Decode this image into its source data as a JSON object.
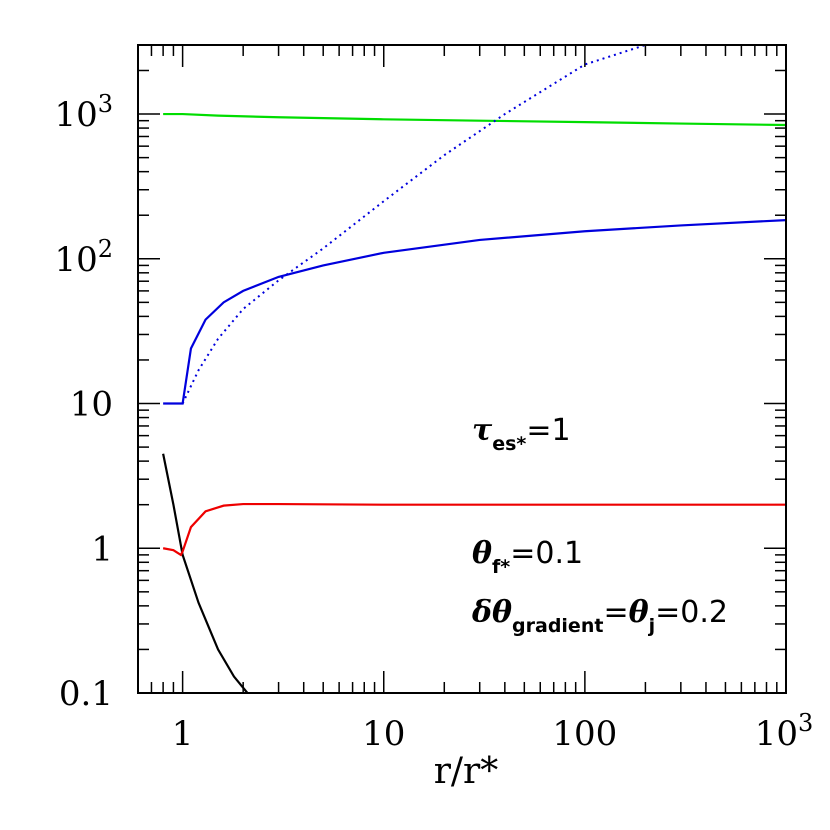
{
  "chart_data": {
    "type": "line",
    "xscale": "log",
    "yscale": "log",
    "xlim": [
      0.6,
      1000
    ],
    "ylim": [
      0.1,
      3000
    ],
    "xlabel": "r/r*",
    "ylabel": "",
    "xticks": [
      {
        "value": 1,
        "label": "1"
      },
      {
        "value": 10,
        "label": "10"
      },
      {
        "value": 100,
        "label": "100"
      },
      {
        "value": 1000,
        "label": "10",
        "sup": "3"
      }
    ],
    "yticks": [
      {
        "value": 0.1,
        "label": "0.1"
      },
      {
        "value": 1,
        "label": "1"
      },
      {
        "value": 10,
        "label": "10"
      },
      {
        "value": 100,
        "label": "10",
        "sup": "2"
      },
      {
        "value": 1000,
        "label": "10",
        "sup": "3"
      }
    ],
    "series": [
      {
        "color": "#00dd00",
        "style": "solid",
        "x": [
          0.8,
          1.0,
          1.5,
          3,
          10,
          30,
          100,
          300,
          1000
        ],
        "y": [
          1000,
          1000,
          975,
          950,
          920,
          900,
          880,
          860,
          840
        ]
      },
      {
        "color": "#0000dd",
        "style": "solid",
        "x": [
          0.8,
          0.9,
          0.99,
          1.0,
          1.1,
          1.3,
          1.6,
          2,
          3,
          5,
          10,
          30,
          100,
          300,
          1000
        ],
        "y": [
          10,
          10,
          10,
          10,
          24,
          38,
          50,
          60,
          75,
          90,
          110,
          135,
          155,
          170,
          185
        ]
      },
      {
        "color": "#0000dd",
        "style": "dotted",
        "x": [
          1.0,
          1.2,
          1.5,
          2,
          3,
          5,
          10,
          20,
          40,
          100,
          200
        ],
        "y": [
          10,
          17,
          28,
          45,
          71,
          118,
          250,
          520,
          1000,
          2200,
          3000
        ]
      },
      {
        "color": "#000000",
        "style": "solid",
        "x": [
          0.8,
          0.9,
          1.0,
          1.2,
          1.5,
          1.8,
          2.1
        ],
        "y": [
          4.5,
          2.0,
          0.9,
          0.42,
          0.2,
          0.13,
          0.1
        ]
      },
      {
        "color": "#ee0000",
        "style": "solid",
        "x": [
          0.8,
          0.9,
          0.98,
          1.0,
          1.1,
          1.3,
          1.6,
          2.0,
          3,
          10,
          100,
          1000
        ],
        "y": [
          1.0,
          0.97,
          0.9,
          0.95,
          1.4,
          1.8,
          1.97,
          2.02,
          2.02,
          2.0,
          2.0,
          2.0
        ]
      }
    ],
    "annotations": {
      "tau": {
        "symbol": "τ",
        "sub": "es*",
        "rest": "=1"
      },
      "theta_f": {
        "symbol": "θ",
        "sub": "f*",
        "rest": "=0.1"
      },
      "gradient": {
        "symbol": "δθ",
        "sub": "gradient",
        "mid": "=",
        "symbol2": "θ",
        "sub2": "j",
        "rest": "=0.2"
      }
    }
  }
}
